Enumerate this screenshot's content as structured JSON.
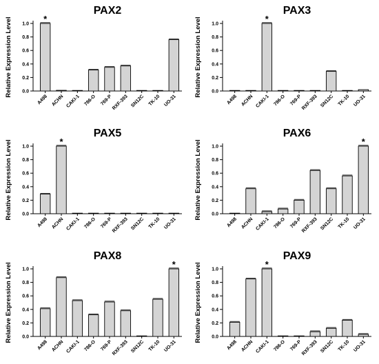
{
  "chart_data": [
    {
      "type": "bar",
      "title": "PAX2",
      "ylabel": "Relative Expression Level",
      "ylim": [
        0,
        1.0
      ],
      "yticks": [
        "0.0",
        "0.2",
        "0.4",
        "0.6",
        "0.8",
        "1.0"
      ],
      "categories": [
        "A498",
        "ACHN",
        "CAKI-1",
        "786-O",
        "769-P",
        "RXF-393",
        "SN12C",
        "TK-10",
        "UO-31"
      ],
      "values": [
        1.0,
        0.01,
        0.0,
        0.31,
        0.35,
        0.37,
        0.0,
        0.0,
        0.76
      ],
      "annotations": [
        {
          "category": "A498",
          "text": "*"
        }
      ]
    },
    {
      "type": "bar",
      "title": "PAX3",
      "ylabel": "Relative Expression Level",
      "ylim": [
        0,
        1.0
      ],
      "yticks": [
        "0.0",
        "0.2",
        "0.4",
        "0.6",
        "0.8",
        "1.0"
      ],
      "categories": [
        "A498",
        "ACHN",
        "CAKI-1",
        "786-O",
        "769-P",
        "RXF-393",
        "SN12C",
        "TK-10",
        "UO-31"
      ],
      "values": [
        0.0,
        0.0,
        1.0,
        0.0,
        0.0,
        0.0,
        0.29,
        0.0,
        0.02
      ],
      "annotations": [
        {
          "category": "CAKI-1",
          "text": "*"
        }
      ]
    },
    {
      "type": "bar",
      "title": "PAX5",
      "ylabel": "Relative Expression Level",
      "ylim": [
        0,
        1.0
      ],
      "yticks": [
        "0.0",
        "0.2",
        "0.4",
        "0.6",
        "0.8",
        "1.0"
      ],
      "categories": [
        "A498",
        "ACHN",
        "CAKI-1",
        "786-O",
        "769-P",
        "RXF-393",
        "SN12C",
        "TK-10",
        "UO-31"
      ],
      "values": [
        0.29,
        1.0,
        0.0,
        0.0,
        0.0,
        0.0,
        0.0,
        0.0,
        0.0
      ],
      "annotations": [
        {
          "category": "ACHN",
          "text": "*"
        }
      ]
    },
    {
      "type": "bar",
      "title": "PAX6",
      "ylabel": "Relative Expression Level",
      "ylim": [
        0,
        1.0
      ],
      "yticks": [
        "0.0",
        "0.2",
        "0.4",
        "0.6",
        "0.8",
        "1.0"
      ],
      "categories": [
        "A498",
        "ACHN",
        "CAKI-1",
        "786-O",
        "769-P",
        "RXF-393",
        "SN12C",
        "TK-10",
        "UO-31"
      ],
      "values": [
        0.0,
        0.37,
        0.03,
        0.07,
        0.2,
        0.64,
        0.37,
        0.56,
        1.0
      ],
      "annotations": [
        {
          "category": "UO-31",
          "text": "*"
        }
      ]
    },
    {
      "type": "bar",
      "title": "PAX8",
      "ylabel": "Relative Expression Level",
      "ylim": [
        0,
        1.0
      ],
      "yticks": [
        "0.0",
        "0.2",
        "0.4",
        "0.6",
        "0.8",
        "1.0"
      ],
      "categories": [
        "A498",
        "ACHN",
        "CAKI-1",
        "786-O",
        "769-P",
        "RXF-393",
        "SN12C",
        "TK-10",
        "UO-31"
      ],
      "values": [
        0.41,
        0.87,
        0.53,
        0.32,
        0.51,
        0.38,
        0.0,
        0.55,
        1.0
      ],
      "annotations": [
        {
          "category": "UO-31",
          "text": "*"
        }
      ]
    },
    {
      "type": "bar",
      "title": "PAX9",
      "ylabel": "Relative Expression Level",
      "ylim": [
        0,
        1.0
      ],
      "yticks": [
        "0.0",
        "0.2",
        "0.4",
        "0.6",
        "0.8",
        "1.0"
      ],
      "categories": [
        "A498",
        "ACHN",
        "CAKI-1",
        "786-O",
        "769-P",
        "RXF-393",
        "SN12C",
        "TK-10",
        "UO-31"
      ],
      "values": [
        0.21,
        0.85,
        1.0,
        0.0,
        0.0,
        0.07,
        0.12,
        0.24,
        0.03
      ],
      "annotations": [
        {
          "category": "CAKI-1",
          "text": "*"
        }
      ]
    }
  ],
  "colors": {
    "bar_fill": "#d4d4d4",
    "bar_stroke": "#000000",
    "axis": "#000000"
  }
}
